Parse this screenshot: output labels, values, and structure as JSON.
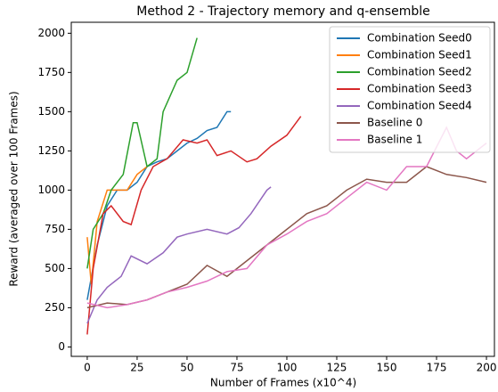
{
  "chart_data": {
    "type": "line",
    "title": "Method 2 - Trajectory memory and q-ensemble",
    "xlabel": "Number of Frames (x10^4)",
    "ylabel": "Reward (averaged over 100 Frames)",
    "xlim": [
      -8,
      204
    ],
    "ylim": [
      -60,
      2070
    ],
    "xticks": [
      0,
      25,
      50,
      75,
      100,
      125,
      150,
      175,
      200
    ],
    "yticks": [
      0,
      250,
      500,
      750,
      1000,
      1250,
      1500,
      1750,
      2000
    ],
    "legend": "upper right",
    "grid": false,
    "series": [
      {
        "name": "Combination Seed0",
        "color": "#1f77b4",
        "x": [
          0,
          5,
          10,
          15,
          20,
          25,
          30,
          35,
          40,
          45,
          50,
          55,
          60,
          65,
          70,
          72
        ],
        "values": [
          300,
          650,
          900,
          1000,
          1000,
          1050,
          1150,
          1180,
          1200,
          1250,
          1300,
          1330,
          1380,
          1400,
          1500,
          1500
        ]
      },
      {
        "name": "Combination Seed1",
        "color": "#ff7f0e",
        "x": [
          0,
          2,
          5,
          10,
          15,
          20,
          25,
          30
        ],
        "values": [
          700,
          400,
          800,
          1000,
          1000,
          1000,
          1100,
          1150
        ]
      },
      {
        "name": "Combination Seed2",
        "color": "#2ca02c",
        "x": [
          0,
          3,
          8,
          12,
          18,
          23,
          25,
          30,
          35,
          38,
          45,
          50,
          55
        ],
        "values": [
          500,
          750,
          850,
          1000,
          1100,
          1430,
          1430,
          1150,
          1200,
          1500,
          1700,
          1750,
          1970
        ]
      },
      {
        "name": "Combination Seed3",
        "color": "#d62728",
        "x": [
          0,
          3,
          8,
          12,
          18,
          22,
          27,
          33,
          40,
          48,
          55,
          60,
          65,
          72,
          80,
          85,
          92,
          100,
          107
        ],
        "values": [
          80,
          500,
          850,
          900,
          800,
          780,
          1000,
          1150,
          1200,
          1320,
          1300,
          1320,
          1220,
          1250,
          1180,
          1200,
          1280,
          1350,
          1470
        ]
      },
      {
        "name": "Combination Seed4",
        "color": "#9467bd",
        "x": [
          0,
          5,
          10,
          17,
          22,
          30,
          38,
          45,
          50,
          60,
          70,
          76,
          82,
          90,
          92
        ],
        "values": [
          150,
          300,
          380,
          450,
          580,
          530,
          600,
          700,
          720,
          750,
          720,
          760,
          850,
          1000,
          1020
        ]
      },
      {
        "name": "Baseline 0",
        "color": "#8c564b",
        "x": [
          0,
          10,
          20,
          30,
          40,
          50,
          60,
          70,
          80,
          90,
          100,
          110,
          120,
          130,
          140,
          150,
          160,
          170,
          180,
          190,
          200
        ],
        "values": [
          250,
          280,
          270,
          300,
          350,
          400,
          520,
          450,
          550,
          650,
          750,
          850,
          900,
          1000,
          1070,
          1050,
          1050,
          1150,
          1100,
          1080,
          1050
        ]
      },
      {
        "name": "Baseline 1",
        "color": "#e377c2",
        "x": [
          0,
          10,
          20,
          30,
          40,
          50,
          60,
          70,
          80,
          90,
          100,
          110,
          120,
          130,
          140,
          150,
          160,
          170,
          180,
          185,
          190,
          200
        ],
        "values": [
          280,
          250,
          270,
          300,
          350,
          380,
          420,
          480,
          500,
          650,
          720,
          800,
          850,
          950,
          1050,
          1000,
          1150,
          1150,
          1400,
          1250,
          1200,
          1300
        ]
      }
    ]
  }
}
